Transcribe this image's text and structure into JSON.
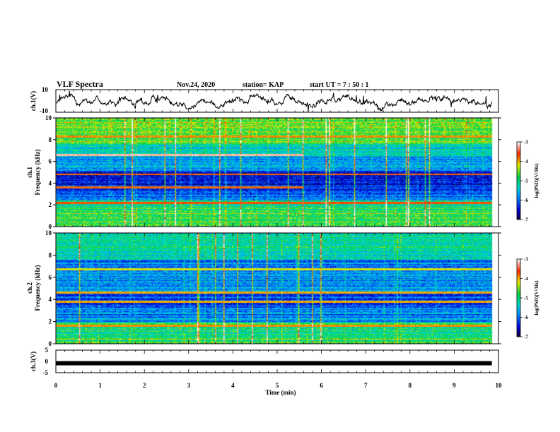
{
  "header": {
    "title": "VLF Spectra",
    "date": "Nov.24, 2020",
    "station": "station= KAP",
    "start_ut": "start  UT  =   7 : 50 : 1"
  },
  "chart_data": [
    {
      "type": "line",
      "name": "ch1-waveform",
      "ylabel": "ch.1(V)",
      "ylim": [
        -10,
        10
      ],
      "yticks": [
        "10",
        "-10"
      ],
      "xlim": [
        0,
        10
      ],
      "data_end_min": 9.85,
      "color": "#000000"
    },
    {
      "type": "heatmap",
      "name": "ch1-spectrogram",
      "ylabel_line1": "ch.1",
      "ylabel_line2": "Frequency  (kHz)",
      "ylim": [
        0,
        10
      ],
      "yticks": [
        "0",
        "2",
        "4",
        "6",
        "8",
        "10"
      ],
      "xlim": [
        0,
        10
      ],
      "data_end_min": 9.85,
      "colorbar": {
        "label": "log(PSD)(V²/Hz)",
        "ticks": [
          "-3",
          "-4",
          "-5",
          "-6",
          "-7"
        ],
        "range": [
          -7,
          -3
        ]
      },
      "bands_khz": [
        {
          "lo": 0.0,
          "hi": 0.5,
          "level": -4.8
        },
        {
          "lo": 0.5,
          "hi": 1.9,
          "level": -4.9
        },
        {
          "lo": 1.9,
          "hi": 2.4,
          "level": -5.2
        },
        {
          "lo": 2.4,
          "hi": 3.6,
          "level": -6.1
        },
        {
          "lo": 3.6,
          "hi": 5.1,
          "level": -6.4
        },
        {
          "lo": 5.1,
          "hi": 6.4,
          "level": -5.7
        },
        {
          "lo": 6.4,
          "hi": 7.6,
          "level": -5.3
        },
        {
          "lo": 7.6,
          "hi": 10.0,
          "level": -4.6
        }
      ],
      "tones_khz": [
        {
          "f": 2.2,
          "level": -3.7
        },
        {
          "f": 3.6,
          "level": -3.8,
          "end_min": 5.6
        },
        {
          "f": 4.8,
          "level": -3.8
        },
        {
          "f": 6.6,
          "level": -3.2,
          "end_min": 5.6
        },
        {
          "f": 8.3,
          "level": -3.9
        }
      ]
    },
    {
      "type": "heatmap",
      "name": "ch2-spectrogram",
      "ylabel_line1": "ch.2",
      "ylabel_line2": "Frequency  (kHz)",
      "ylim": [
        0,
        10
      ],
      "yticks": [
        "0",
        "2",
        "4",
        "6",
        "8",
        "10"
      ],
      "xlim": [
        0,
        10
      ],
      "data_end_min": 9.85,
      "colorbar": {
        "label": "log(PSD)(V²/Hz)",
        "ticks": [
          "-3",
          "-4",
          "-5",
          "-6",
          "-7"
        ],
        "range": [
          -7,
          -3
        ]
      },
      "bands_khz": [
        {
          "lo": 0.0,
          "hi": 0.5,
          "level": -4.8
        },
        {
          "lo": 0.5,
          "hi": 2.0,
          "level": -5.0
        },
        {
          "lo": 2.0,
          "hi": 3.2,
          "level": -5.9
        },
        {
          "lo": 3.2,
          "hi": 4.5,
          "level": -6.2
        },
        {
          "lo": 4.5,
          "hi": 7.6,
          "level": -5.8
        },
        {
          "lo": 7.6,
          "hi": 10.0,
          "level": -5.2
        }
      ],
      "tones_khz": [
        {
          "f": 1.6,
          "level": -3.9
        },
        {
          "f": 3.8,
          "level": -4.0
        },
        {
          "f": 4.6,
          "level": -4.0
        },
        {
          "f": 6.7,
          "level": -4.2
        }
      ]
    },
    {
      "type": "line",
      "name": "ch3-signal",
      "ylabel": "ch.3(V)",
      "ylim": [
        -5,
        5
      ],
      "yticks": [
        "5",
        "0",
        "-5"
      ],
      "xlim": [
        0,
        10
      ],
      "data_end_min": 9.85,
      "level_v": -0.8,
      "color": "#000000"
    }
  ],
  "xaxis": {
    "label": "Time  (min)",
    "ticks": [
      "0",
      "1",
      "2",
      "3",
      "4",
      "5",
      "6",
      "7",
      "8",
      "9",
      "10"
    ]
  }
}
